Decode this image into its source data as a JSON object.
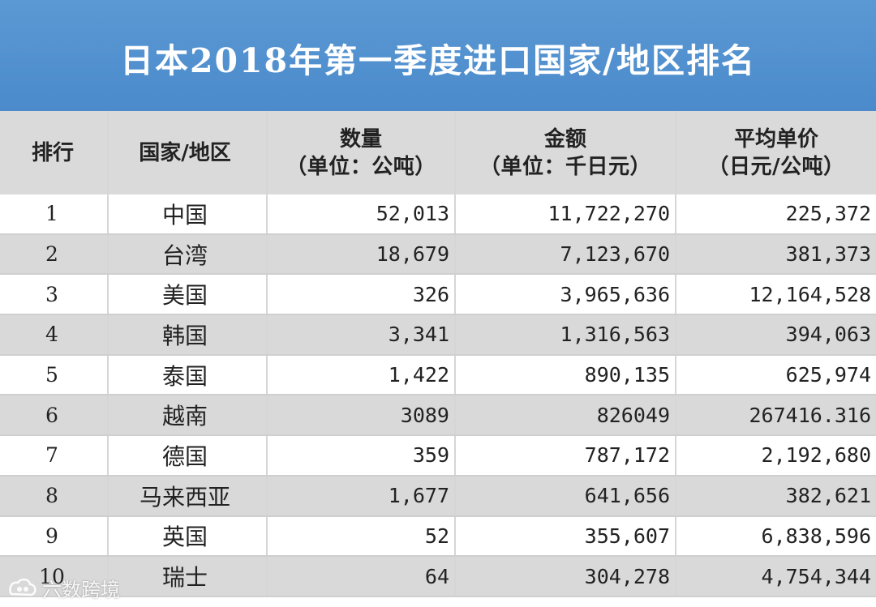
{
  "title": "日本2018年第一季度进口国家/地区排名",
  "headers": {
    "rank": "排行",
    "country": "国家/地区",
    "qty_line1": "数量",
    "qty_line2": "（单位：公吨）",
    "amt_line1": "金额",
    "amt_line2": "（单位：千日元）",
    "price_line1": "平均单价",
    "price_line2": "（日元/公吨）"
  },
  "watermark": "六数跨境",
  "chart_data": {
    "type": "table",
    "title": "日本2018年第一季度进口国家/地区排名",
    "columns": [
      "排行",
      "国家/地区",
      "数量（单位：公吨）",
      "金额（单位：千日元）",
      "平均单价（日元/公吨）"
    ],
    "rows": [
      {
        "rank": "1",
        "country": "中国",
        "qty": "52,013",
        "amount": "11,722,270",
        "price": "225,372"
      },
      {
        "rank": "2",
        "country": "台湾",
        "qty": "18,679",
        "amount": "7,123,670",
        "price": "381,373"
      },
      {
        "rank": "3",
        "country": "美国",
        "qty": "326",
        "amount": "3,965,636",
        "price": "12,164,528"
      },
      {
        "rank": "4",
        "country": "韩国",
        "qty": "3,341",
        "amount": "1,316,563",
        "price": "394,063"
      },
      {
        "rank": "5",
        "country": "泰国",
        "qty": "1,422",
        "amount": "890,135",
        "price": "625,974"
      },
      {
        "rank": "6",
        "country": "越南",
        "qty": "3089",
        "amount": "826049",
        "price": "267416.316"
      },
      {
        "rank": "7",
        "country": "德国",
        "qty": "359",
        "amount": "787,172",
        "price": "2,192,680"
      },
      {
        "rank": "8",
        "country": "马来西亚",
        "qty": "1,677",
        "amount": "641,656",
        "price": "382,621"
      },
      {
        "rank": "9",
        "country": "英国",
        "qty": "52",
        "amount": "355,607",
        "price": "6,838,596"
      },
      {
        "rank": "10",
        "country": "瑞士",
        "qty": "64",
        "amount": "304,278",
        "price": "4,754,344"
      }
    ]
  },
  "colors": {
    "title_bg": "#4f8fcf",
    "header_bg": "#dadada",
    "row_alt_bg": "#d9d9d9"
  }
}
